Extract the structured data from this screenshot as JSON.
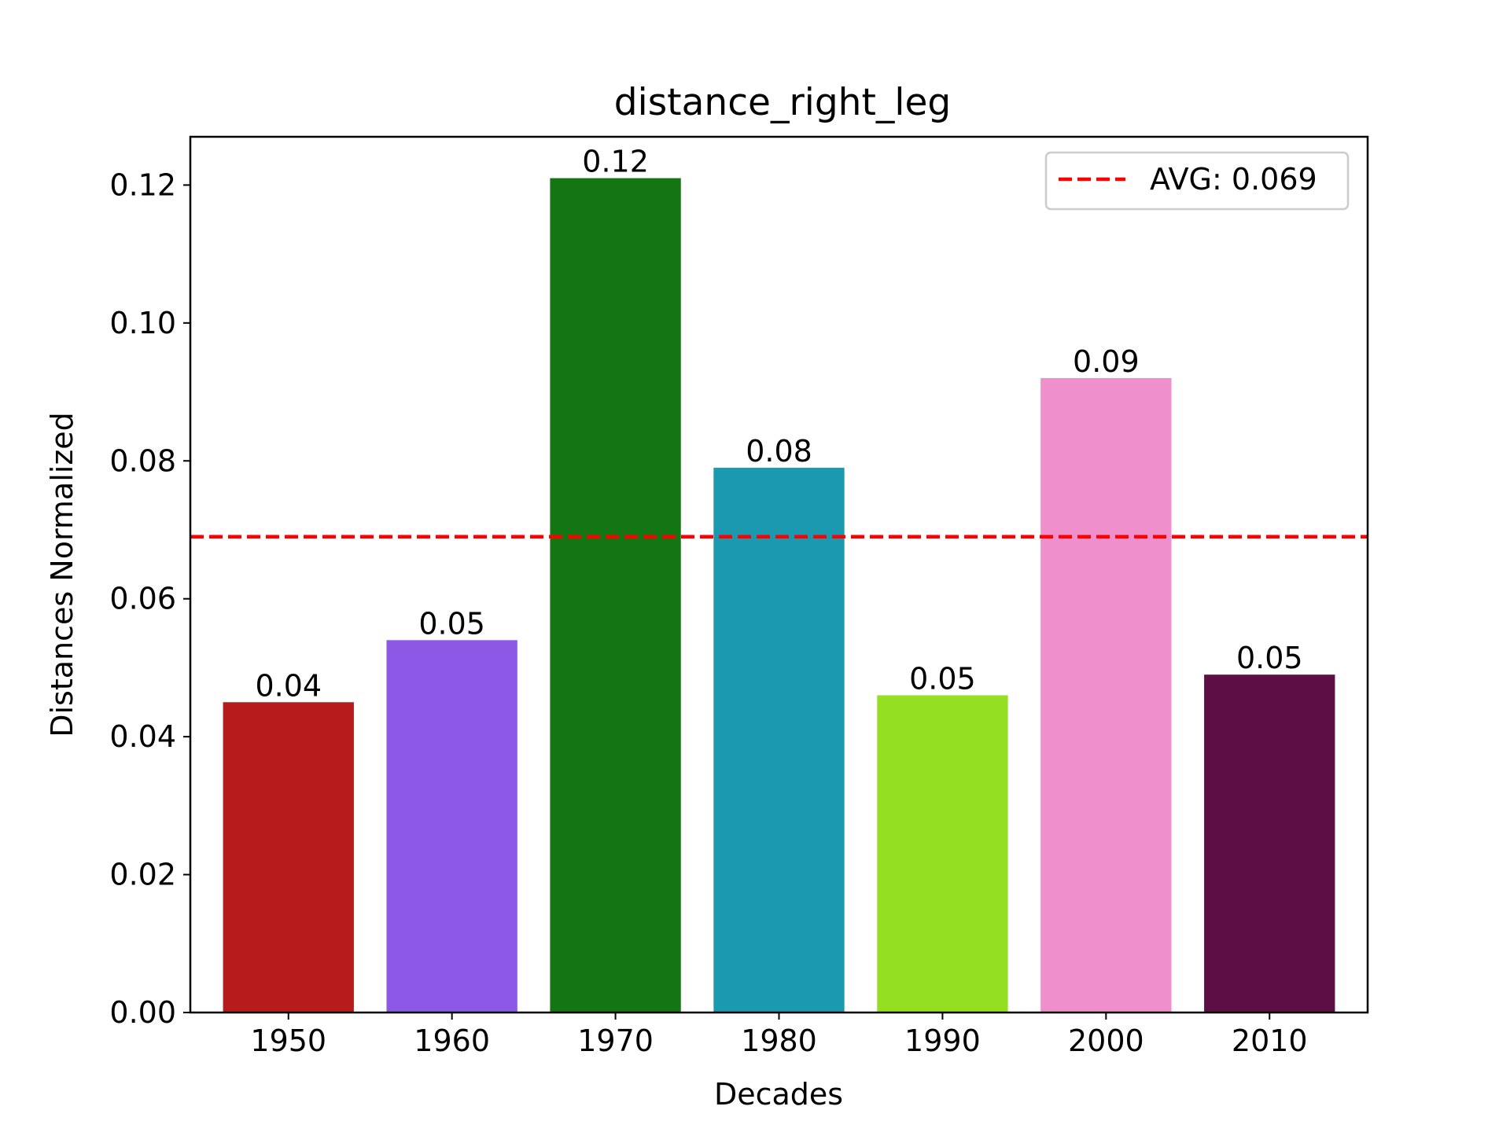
{
  "chart_data": {
    "type": "bar",
    "title": "distance_right_leg",
    "xlabel": "Decades",
    "ylabel": "Distances Normalized",
    "categories": [
      "1950",
      "1960",
      "1970",
      "1980",
      "1990",
      "2000",
      "2010"
    ],
    "values": [
      0.045,
      0.054,
      0.121,
      0.079,
      0.046,
      0.092,
      0.049
    ],
    "bar_labels": [
      "0.04",
      "0.05",
      "0.12",
      "0.08",
      "0.05",
      "0.09",
      "0.05"
    ],
    "colors": [
      "#b71c1c",
      "#8e58e6",
      "#137613",
      "#1b9aaf",
      "#94df20",
      "#ef8fcc",
      "#5d0e45"
    ],
    "ylim": [
      0,
      0.127
    ],
    "yticks": [
      0.0,
      0.02,
      0.04,
      0.06,
      0.08,
      0.1,
      0.12
    ],
    "ytick_labels": [
      "0.00",
      "0.02",
      "0.04",
      "0.06",
      "0.08",
      "0.10",
      "0.12"
    ],
    "grid": false,
    "reference_line": {
      "value": 0.069,
      "color": "#ff0000",
      "style": "dashed"
    },
    "legend": {
      "position": "top-right",
      "entries": [
        "AVG: 0.069"
      ]
    }
  }
}
